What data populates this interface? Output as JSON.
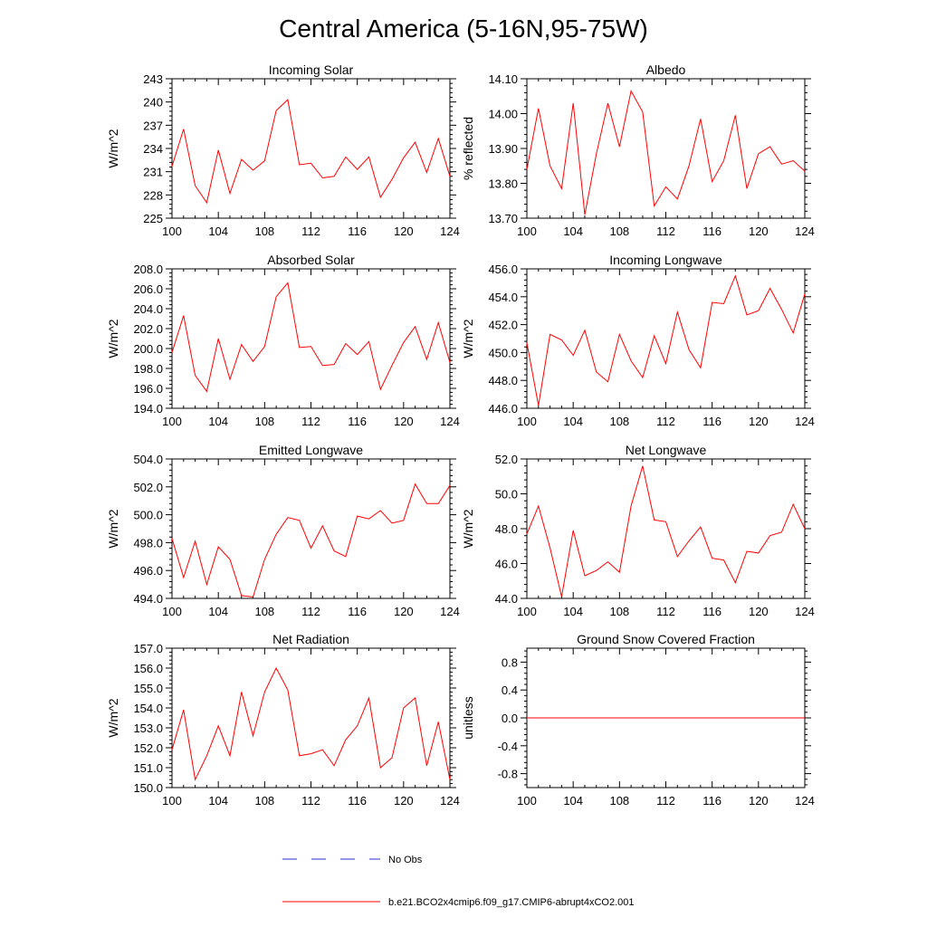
{
  "figure": {
    "title": "Central America (5-16N,95-75W)"
  },
  "legend": {
    "entries": [
      {
        "label": "No Obs",
        "color": "#2b2bd6",
        "style": "dashed"
      },
      {
        "label": "b.e21.BCO2x4cmip6.f09_g17.CMIP6-abrupt4xCO2.001",
        "color": "#ff0000",
        "style": "solid"
      }
    ]
  },
  "chart_data": [
    {
      "type": "line",
      "title": "Incoming Solar",
      "xlabel": "",
      "ylabel": "W/m^2",
      "xlim": [
        100,
        124
      ],
      "ylim": [
        225,
        243
      ],
      "xticks": [
        "100",
        "104",
        "108",
        "112",
        "116",
        "120",
        "124"
      ],
      "yticks": [
        "225",
        "228",
        "231",
        "234",
        "237",
        "240",
        "243"
      ],
      "x": [
        100,
        101,
        102,
        103,
        104,
        105,
        106,
        107,
        108,
        109,
        110,
        111,
        112,
        113,
        114,
        115,
        116,
        117,
        118,
        119,
        120,
        121,
        122,
        123,
        124
      ],
      "series": [
        {
          "name": "b.e21.BCO2x4cmip6.f09_g17.CMIP6-abrupt4xCO2.001",
          "color": "#ff0000",
          "values": [
            231.7,
            236.5,
            229.2,
            227.0,
            233.8,
            228.2,
            232.6,
            231.2,
            232.4,
            238.9,
            240.3,
            231.9,
            232.1,
            230.2,
            230.4,
            232.9,
            231.3,
            232.9,
            227.7,
            230.0,
            232.8,
            234.8,
            230.9,
            235.3,
            230.4
          ]
        }
      ]
    },
    {
      "type": "line",
      "title": "Albedo",
      "xlabel": "",
      "ylabel": "% reflected",
      "xlim": [
        100,
        124
      ],
      "ylim": [
        13.7,
        14.1
      ],
      "xticks": [
        "100",
        "104",
        "108",
        "112",
        "116",
        "120",
        "124"
      ],
      "yticks": [
        "13.70",
        "13.80",
        "13.90",
        "14.00",
        "14.10"
      ],
      "x": [
        100,
        101,
        102,
        103,
        104,
        105,
        106,
        107,
        108,
        109,
        110,
        111,
        112,
        113,
        114,
        115,
        116,
        117,
        118,
        119,
        120,
        121,
        122,
        123,
        124
      ],
      "series": [
        {
          "name": "b.e21.BCO2x4cmip6.f09_g17.CMIP6-abrupt4xCO2.001",
          "color": "#ff0000",
          "values": [
            13.84,
            14.015,
            13.85,
            13.785,
            14.03,
            13.71,
            13.885,
            14.03,
            13.905,
            14.065,
            14.005,
            13.735,
            13.79,
            13.755,
            13.85,
            13.985,
            13.805,
            13.865,
            13.995,
            13.785,
            13.885,
            13.905,
            13.855,
            13.865,
            13.835
          ]
        }
      ]
    },
    {
      "type": "line",
      "title": "Absorbed Solar",
      "xlabel": "",
      "ylabel": "W/m^2",
      "xlim": [
        100,
        124
      ],
      "ylim": [
        194.0,
        208.0
      ],
      "xticks": [
        "100",
        "104",
        "108",
        "112",
        "116",
        "120",
        "124"
      ],
      "yticks": [
        "194.0",
        "196.0",
        "198.0",
        "200.0",
        "202.0",
        "204.0",
        "206.0",
        "208.0"
      ],
      "x": [
        100,
        101,
        102,
        103,
        104,
        105,
        106,
        107,
        108,
        109,
        110,
        111,
        112,
        113,
        114,
        115,
        116,
        117,
        118,
        119,
        120,
        121,
        122,
        123,
        124
      ],
      "series": [
        {
          "name": "b.e21.BCO2x4cmip6.f09_g17.CMIP6-abrupt4xCO2.001",
          "color": "#ff0000",
          "values": [
            199.6,
            203.3,
            197.3,
            195.7,
            201.0,
            196.9,
            200.4,
            198.7,
            200.2,
            205.2,
            206.6,
            200.1,
            200.2,
            198.3,
            198.4,
            200.5,
            199.4,
            200.7,
            195.9,
            198.3,
            200.6,
            202.2,
            198.9,
            202.6,
            198.6
          ]
        }
      ]
    },
    {
      "type": "line",
      "title": "Incoming Longwave",
      "xlabel": "",
      "ylabel": "W/m^2",
      "xlim": [
        100,
        124
      ],
      "ylim": [
        446.0,
        456.0
      ],
      "xticks": [
        "100",
        "104",
        "108",
        "112",
        "116",
        "120",
        "124"
      ],
      "yticks": [
        "446.0",
        "448.0",
        "450.0",
        "452.0",
        "454.0",
        "456.0"
      ],
      "x": [
        100,
        101,
        102,
        103,
        104,
        105,
        106,
        107,
        108,
        109,
        110,
        111,
        112,
        113,
        114,
        115,
        116,
        117,
        118,
        119,
        120,
        121,
        122,
        123,
        124
      ],
      "series": [
        {
          "name": "b.e21.BCO2x4cmip6.f09_g17.CMIP6-abrupt4xCO2.001",
          "color": "#ff0000",
          "values": [
            450.7,
            446.2,
            451.3,
            450.9,
            449.8,
            451.6,
            448.6,
            447.9,
            451.3,
            449.4,
            448.2,
            451.2,
            449.2,
            452.9,
            450.2,
            448.9,
            453.6,
            453.5,
            455.5,
            452.7,
            453.0,
            454.6,
            453.1,
            451.4,
            454.2
          ]
        }
      ]
    },
    {
      "type": "line",
      "title": "Emitted Longwave",
      "xlabel": "",
      "ylabel": "W/m^2",
      "xlim": [
        100,
        124
      ],
      "ylim": [
        494.0,
        504.0
      ],
      "xticks": [
        "100",
        "104",
        "108",
        "112",
        "116",
        "120",
        "124"
      ],
      "yticks": [
        "494.0",
        "496.0",
        "498.0",
        "500.0",
        "502.0",
        "504.0"
      ],
      "x": [
        100,
        101,
        102,
        103,
        104,
        105,
        106,
        107,
        108,
        109,
        110,
        111,
        112,
        113,
        114,
        115,
        116,
        117,
        118,
        119,
        120,
        121,
        122,
        123,
        124
      ],
      "series": [
        {
          "name": "b.e21.BCO2x4cmip6.f09_g17.CMIP6-abrupt4xCO2.001",
          "color": "#ff0000",
          "values": [
            498.3,
            495.5,
            498.1,
            495.0,
            497.7,
            496.8,
            494.2,
            494.1,
            496.8,
            498.6,
            499.8,
            499.6,
            497.6,
            499.2,
            497.4,
            497.0,
            499.9,
            499.7,
            500.3,
            499.4,
            499.6,
            502.2,
            500.8,
            500.8,
            502.1
          ]
        }
      ]
    },
    {
      "type": "line",
      "title": "Net Longwave",
      "xlabel": "",
      "ylabel": "W/m^2",
      "xlim": [
        100,
        124
      ],
      "ylim": [
        44.0,
        52.0
      ],
      "xticks": [
        "100",
        "104",
        "108",
        "112",
        "116",
        "120",
        "124"
      ],
      "yticks": [
        "44.0",
        "46.0",
        "48.0",
        "50.0",
        "52.0"
      ],
      "x": [
        100,
        101,
        102,
        103,
        104,
        105,
        106,
        107,
        108,
        109,
        110,
        111,
        112,
        113,
        114,
        115,
        116,
        117,
        118,
        119,
        120,
        121,
        122,
        123,
        124
      ],
      "series": [
        {
          "name": "b.e21.BCO2x4cmip6.f09_g17.CMIP6-abrupt4xCO2.001",
          "color": "#ff0000",
          "values": [
            47.7,
            49.3,
            46.9,
            44.1,
            47.9,
            45.3,
            45.6,
            46.1,
            45.5,
            49.3,
            51.6,
            48.5,
            48.4,
            46.4,
            47.3,
            48.1,
            46.3,
            46.2,
            44.9,
            46.7,
            46.6,
            47.6,
            47.8,
            49.4,
            48.0
          ]
        }
      ]
    },
    {
      "type": "line",
      "title": "Net Radiation",
      "xlabel": "",
      "ylabel": "W/m^2",
      "xlim": [
        100,
        124
      ],
      "ylim": [
        150.0,
        157.0
      ],
      "xticks": [
        "100",
        "104",
        "108",
        "112",
        "116",
        "120",
        "124"
      ],
      "yticks": [
        "150.0",
        "151.0",
        "152.0",
        "153.0",
        "154.0",
        "155.0",
        "156.0",
        "157.0"
      ],
      "x": [
        100,
        101,
        102,
        103,
        104,
        105,
        106,
        107,
        108,
        109,
        110,
        111,
        112,
        113,
        114,
        115,
        116,
        117,
        118,
        119,
        120,
        121,
        122,
        123,
        124
      ],
      "series": [
        {
          "name": "b.e21.BCO2x4cmip6.f09_g17.CMIP6-abrupt4xCO2.001",
          "color": "#ff0000",
          "values": [
            151.9,
            153.9,
            150.4,
            151.6,
            153.1,
            151.6,
            154.8,
            152.6,
            154.8,
            156.0,
            154.9,
            151.6,
            151.7,
            151.9,
            151.1,
            152.4,
            153.1,
            154.5,
            151.0,
            151.5,
            154.0,
            154.5,
            151.1,
            153.3,
            150.4
          ]
        }
      ]
    },
    {
      "type": "line",
      "title": "Ground Snow Covered Fraction",
      "xlabel": "",
      "ylabel": "unitless",
      "xlim": [
        100,
        124
      ],
      "ylim": [
        -1.0,
        1.0
      ],
      "xticks": [
        "100",
        "104",
        "108",
        "112",
        "116",
        "120",
        "124"
      ],
      "yticks": [
        "-0.8",
        "-0.4",
        "0.0",
        "0.4",
        "0.8"
      ],
      "x": [
        100,
        124
      ],
      "series": [
        {
          "name": "b.e21.BCO2x4cmip6.f09_g17.CMIP6-abrupt4xCO2.001",
          "color": "#ff0000",
          "values": [
            0.0,
            0.0
          ]
        }
      ]
    }
  ]
}
